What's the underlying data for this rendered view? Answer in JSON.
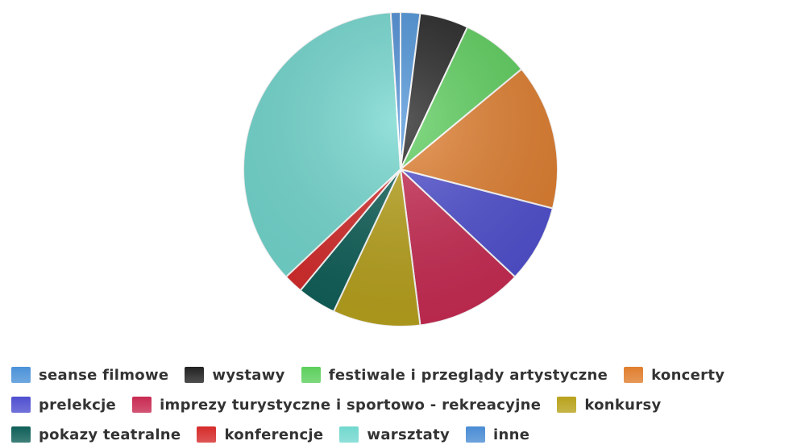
{
  "chart_data": {
    "type": "pie",
    "categories": [
      "seanse filmowe",
      "wystawy",
      "festiwale i przeglądy artystyczne",
      "koncerty",
      "prelekcje",
      "imprezy turystyczne i sportowo - rekreacyjne",
      "konkursy",
      "pokazy teatralne",
      "konferencje",
      "warsztaty",
      "inne"
    ],
    "values": [
      2,
      5,
      7,
      15,
      8,
      11,
      9,
      4,
      2,
      36,
      1
    ],
    "colors": [
      "#4b92d8",
      "#222222",
      "#5ccf5c",
      "#e07e2e",
      "#4f4fd0",
      "#c82a52",
      "#b8a21c",
      "#0f5f58",
      "#d62b2b",
      "#72d8cf",
      "#4a8cd4"
    ]
  }
}
